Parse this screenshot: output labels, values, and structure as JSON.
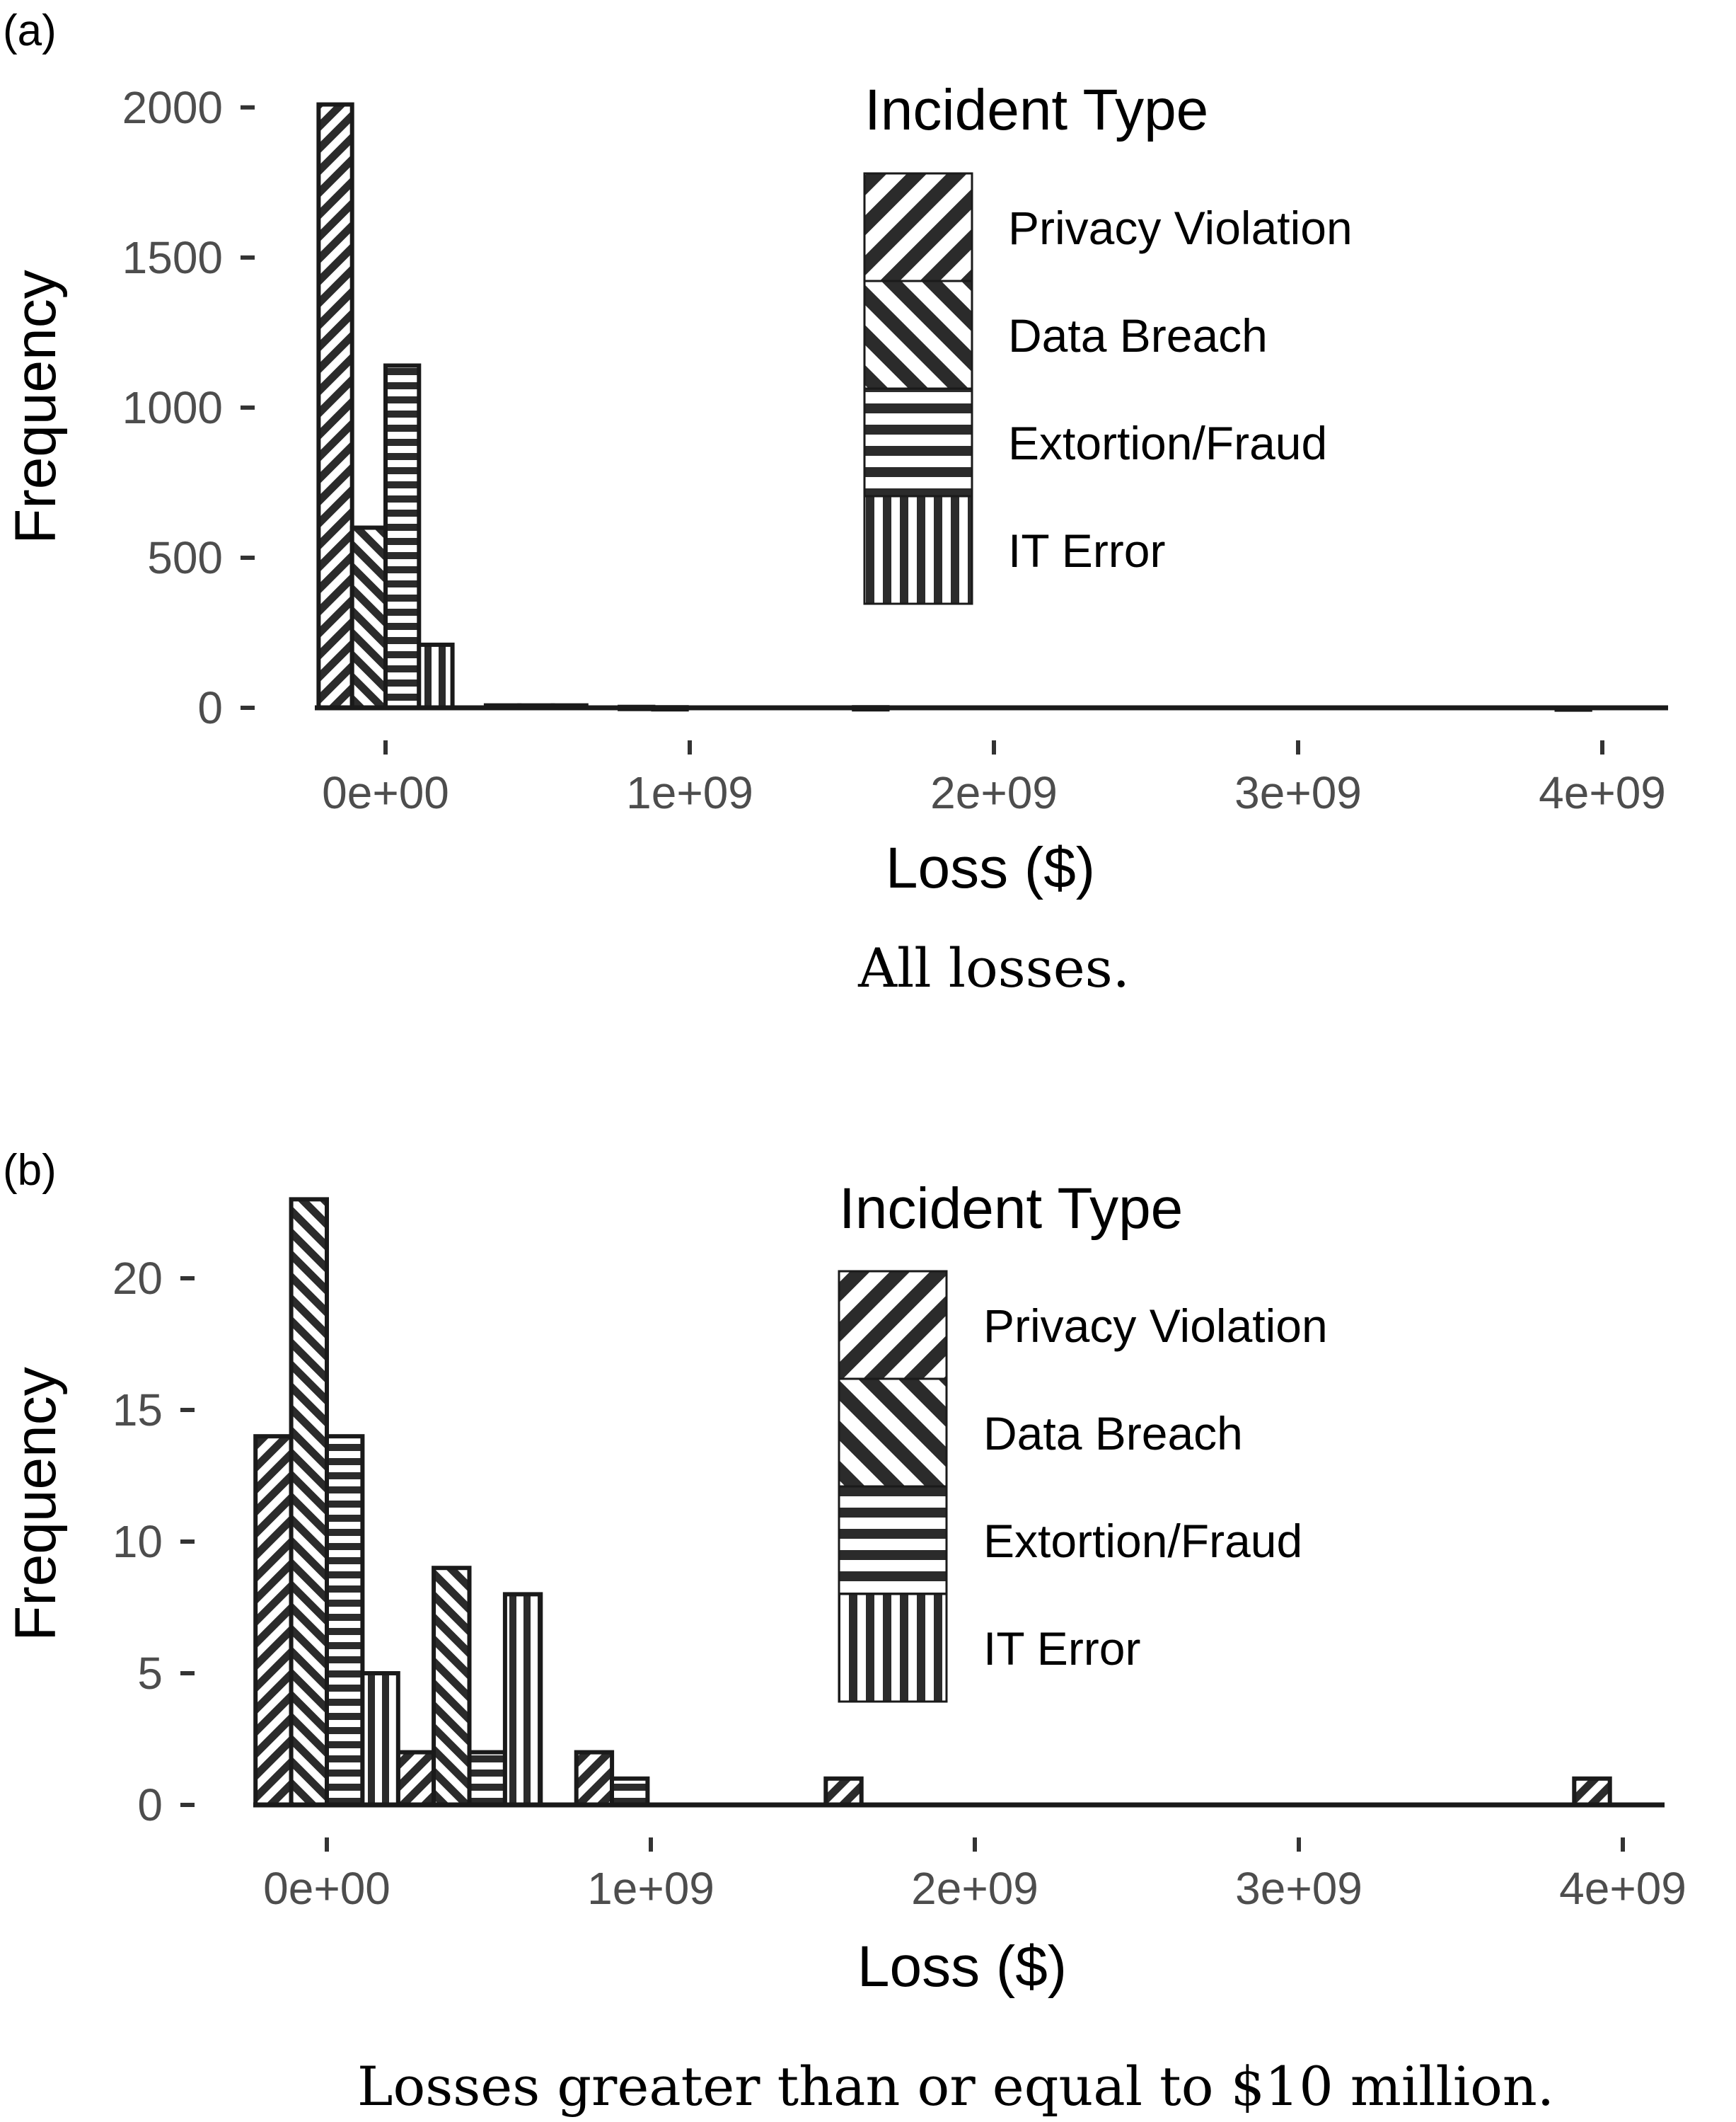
{
  "figure": {
    "legend_title": "Incident Type",
    "legend_items": [
      {
        "label": "Privacy Violation",
        "pattern": "hatch-up"
      },
      {
        "label": "Data Breach",
        "pattern": "hatch-down"
      },
      {
        "label": "Extortion/Fraud",
        "pattern": "horizontal"
      },
      {
        "label": "IT Error",
        "pattern": "vertical"
      }
    ]
  },
  "chart_data": [
    {
      "panel": "(a)",
      "caption": "All losses.",
      "type": "bar",
      "xlabel": "Loss ($)",
      "ylabel": "Frequency",
      "xlim": [
        -250000000,
        4250000000
      ],
      "ylim": [
        0,
        2100
      ],
      "x_ticks": [
        0,
        1000000000,
        2000000000,
        3000000000,
        4000000000
      ],
      "x_tick_labels": [
        "0e+00",
        "1e+09",
        "2e+09",
        "3e+09",
        "4e+09"
      ],
      "y_ticks": [
        0,
        500,
        1000,
        1500,
        2000
      ],
      "y_tick_labels": [
        "0",
        "500",
        "1000",
        "1500",
        "2000"
      ],
      "bin_width": 110000000,
      "grid": false,
      "legend_position": "top-right",
      "series": [
        {
          "name": "Privacy Violation",
          "pattern": "hatch-up",
          "bins": [
            [
              -165000000,
              2010
            ]
          ]
        },
        {
          "name": "Data Breach",
          "pattern": "hatch-down",
          "bins": [
            [
              -55000000,
              600
            ],
            [
              385000000,
              8
            ],
            [
              825000000,
              3
            ],
            [
              1595000000,
              2
            ]
          ]
        },
        {
          "name": "Extortion/Fraud",
          "pattern": "horizontal",
          "bins": [
            [
              55000000,
              1140
            ],
            [
              495000000,
              8
            ],
            [
              935000000,
              2
            ]
          ]
        },
        {
          "name": "IT Error",
          "pattern": "vertical",
          "bins": [
            [
              165000000,
              210
            ],
            [
              605000000,
              8
            ],
            [
              3905000000,
              1
            ]
          ]
        }
      ]
    },
    {
      "panel": "(b)",
      "caption": "Losses greater than or equal to $10 million.",
      "type": "bar",
      "xlabel": "Loss ($)",
      "ylabel": "Frequency",
      "xlim": [
        -230000000,
        4180000000
      ],
      "ylim": [
        0,
        23.3
      ],
      "x_ticks": [
        0,
        1000000000,
        2000000000,
        3000000000,
        4000000000
      ],
      "x_tick_labels": [
        "0e+00",
        "1e+09",
        "2e+09",
        "3e+09",
        "4e+09"
      ],
      "y_ticks": [
        0,
        5,
        10,
        15,
        20
      ],
      "y_tick_labels": [
        "0",
        "5",
        "10",
        "15",
        "20"
      ],
      "bin_width": 110000000,
      "grid": false,
      "legend_position": "top-right",
      "series": [
        {
          "name": "Privacy Violation",
          "pattern": "hatch-up",
          "bins": [
            [
              -165000000,
              14
            ],
            [
              275000000,
              2
            ],
            [
              825000000,
              2
            ],
            [
              1595000000,
              1
            ],
            [
              3905000000,
              1
            ]
          ]
        },
        {
          "name": "Data Breach",
          "pattern": "hatch-down",
          "bins": [
            [
              -55000000,
              23
            ],
            [
              385000000,
              9
            ]
          ]
        },
        {
          "name": "Extortion/Fraud",
          "pattern": "horizontal",
          "bins": [
            [
              55000000,
              14
            ],
            [
              495000000,
              2
            ],
            [
              935000000,
              1
            ]
          ]
        },
        {
          "name": "IT Error",
          "pattern": "vertical",
          "bins": [
            [
              165000000,
              5
            ],
            [
              605000000,
              8
            ]
          ]
        }
      ]
    }
  ]
}
